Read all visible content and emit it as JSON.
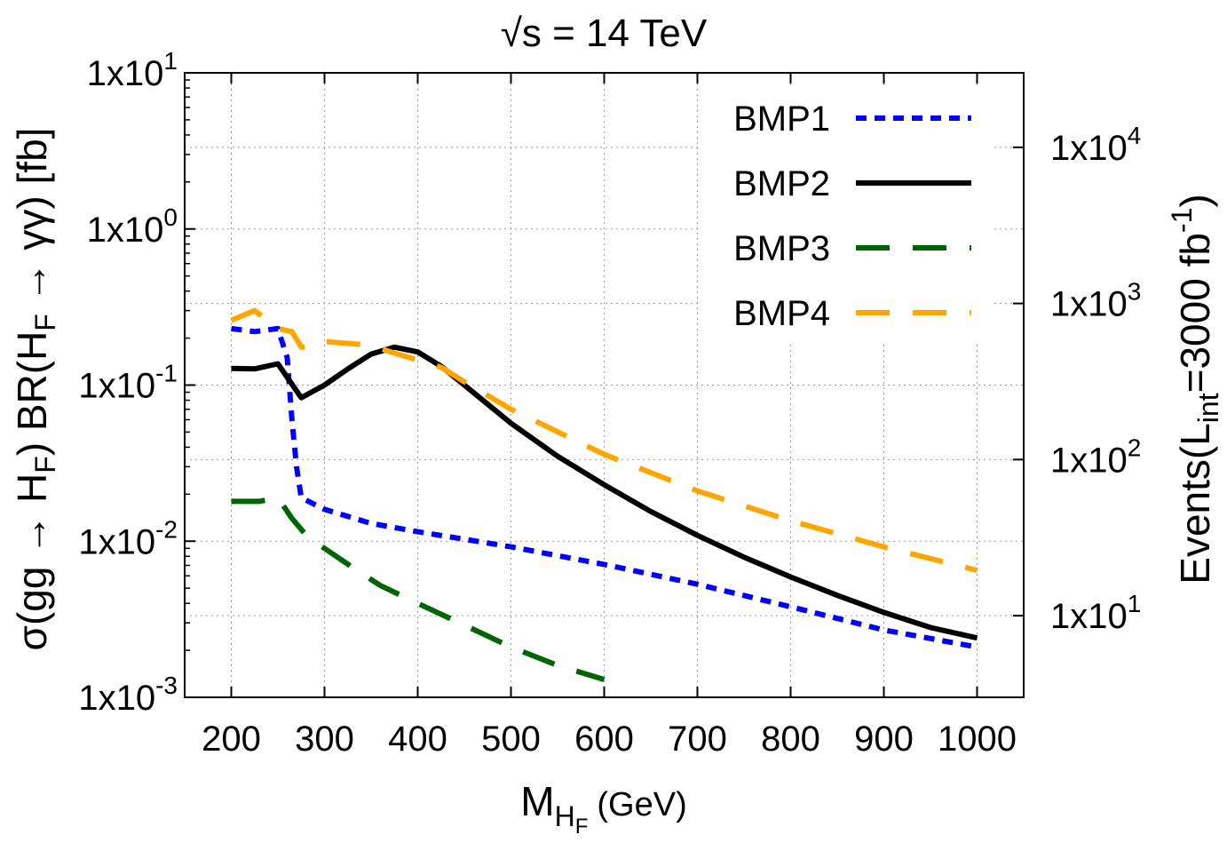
{
  "chart_data": {
    "type": "line",
    "title_base": "√s = 14 TeV",
    "title": "√s = 14 TeV",
    "xlabel": "M",
    "xlabel_sub": "H",
    "xlabel_subsub": "F",
    "xlabel_unit": "(GeV)",
    "ylabel": "σ(gg → H_F) BR(H_F → γγ) [fb]",
    "ylabel_left_parts": [
      "σ(gg ",
      "→",
      " H",
      "F",
      ") BR(H",
      "F",
      " ",
      "→",
      " γγ) [fb]"
    ],
    "y2label": "Events(L_int=3000 fb^-1)",
    "y2label_parts": [
      "Events(L",
      "int",
      "=3000 fb",
      "-1",
      ")"
    ],
    "xlim": [
      150,
      1050
    ],
    "ylim": [
      0.001,
      10
    ],
    "yscale": "log",
    "grid": true,
    "legend_position": "top-right",
    "x_ticks": [
      200,
      300,
      400,
      500,
      600,
      700,
      800,
      900,
      1000
    ],
    "x_tick_labels": [
      "200",
      "300",
      "400",
      "500",
      "600",
      "700",
      "800",
      "900",
      "1000"
    ],
    "y_ticks": [
      {
        "value": 10,
        "base": "1x10",
        "exp": "1"
      },
      {
        "value": 1,
        "base": "1x10",
        "exp": "0"
      },
      {
        "value": 0.1,
        "base": "1x10",
        "exp": "-1"
      },
      {
        "value": 0.01,
        "base": "1x10",
        "exp": "-2"
      },
      {
        "value": 0.001,
        "base": "1x10",
        "exp": "-3"
      }
    ],
    "y2_ticks": [
      {
        "events": 10000,
        "base": "1x10",
        "exp": "4"
      },
      {
        "events": 1000,
        "base": "1x10",
        "exp": "3"
      },
      {
        "events": 100,
        "base": "1x10",
        "exp": "2"
      },
      {
        "events": 10,
        "base": "1x10",
        "exp": "1"
      }
    ],
    "luminosity_fb_inv": 3000,
    "series": [
      {
        "name": "BMP1",
        "color": "#0000ff",
        "style": "dotted",
        "x": [
          200,
          225,
          250,
          260,
          265,
          270,
          275,
          300,
          350,
          400,
          450,
          500,
          600,
          700,
          800,
          900,
          1000
        ],
        "y": [
          0.23,
          0.22,
          0.23,
          0.15,
          0.06,
          0.03,
          0.019,
          0.016,
          0.013,
          0.0115,
          0.0103,
          0.0092,
          0.0071,
          0.0053,
          0.0038,
          0.0027,
          0.0021
        ]
      },
      {
        "name": "BMP2",
        "color": "#000000",
        "style": "solid",
        "x": [
          200,
          225,
          250,
          275,
          300,
          325,
          350,
          375,
          400,
          425,
          450,
          500,
          550,
          600,
          650,
          700,
          750,
          800,
          850,
          900,
          950,
          1000
        ],
        "y": [
          0.128,
          0.127,
          0.137,
          0.083,
          0.1,
          0.127,
          0.158,
          0.175,
          0.163,
          0.132,
          0.1,
          0.057,
          0.035,
          0.023,
          0.0155,
          0.0109,
          0.0079,
          0.0059,
          0.0045,
          0.0035,
          0.0028,
          0.0024
        ]
      },
      {
        "name": "BMP3",
        "color": "#006400",
        "style": "dashed",
        "x": [
          200,
          230,
          250,
          265,
          280,
          300,
          330,
          360,
          400,
          450,
          500,
          550,
          600
        ],
        "y": [
          0.018,
          0.018,
          0.019,
          0.014,
          0.011,
          0.009,
          0.0068,
          0.0052,
          0.004,
          0.0029,
          0.0021,
          0.0016,
          0.0013
        ]
      },
      {
        "name": "BMP4",
        "color": "#ffa500",
        "style": "dashed",
        "x": [
          200,
          225,
          250,
          265,
          275,
          285,
          300,
          350,
          375,
          400,
          425,
          450,
          500,
          600,
          700,
          800,
          900,
          1000
        ],
        "y": [
          0.26,
          0.3,
          0.23,
          0.22,
          0.175,
          0.175,
          0.19,
          0.18,
          0.16,
          0.145,
          0.13,
          0.105,
          0.07,
          0.036,
          0.021,
          0.0135,
          0.0092,
          0.0065
        ]
      }
    ]
  }
}
